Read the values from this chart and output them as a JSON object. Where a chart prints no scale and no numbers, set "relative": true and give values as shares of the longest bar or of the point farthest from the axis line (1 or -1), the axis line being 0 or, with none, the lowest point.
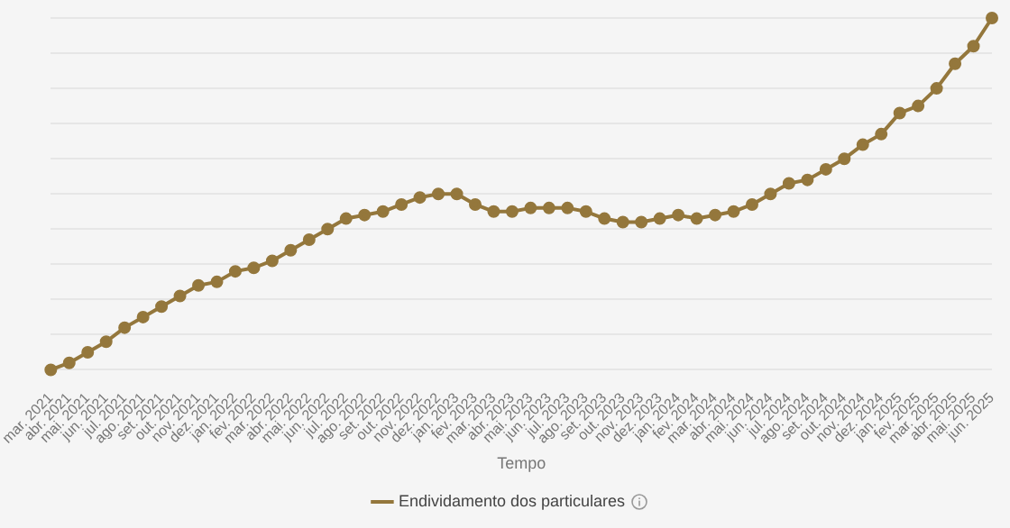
{
  "chart_data": {
    "type": "line",
    "xlabel": "Tempo",
    "relative": true,
    "grid": "y",
    "legend": "bottom",
    "marker": "circle",
    "line_style": "solid",
    "categories": [
      "mar. 2021",
      "abr. 2021",
      "mai. 2021",
      "jun. 2021",
      "jul. 2021",
      "ago. 2021",
      "set. 2021",
      "out. 2021",
      "nov. 2021",
      "dez. 2021",
      "jan. 2022",
      "fev. 2022",
      "mar. 2022",
      "abr. 2022",
      "mai. 2022",
      "jun. 2022",
      "jul. 2022",
      "ago. 2022",
      "set. 2022",
      "out. 2022",
      "nov. 2022",
      "dez. 2022",
      "jan. 2023",
      "fev. 2023",
      "mar. 2023",
      "abr. 2023",
      "mai. 2023",
      "jun. 2023",
      "jul. 2023",
      "ago. 2023",
      "set. 2023",
      "out. 2023",
      "nov. 2023",
      "dez. 2023",
      "jan. 2024",
      "fev. 2024",
      "mar. 2024",
      "abr. 2024",
      "mai. 2024",
      "jun. 2024",
      "jul. 2024",
      "ago. 2024",
      "set. 2024",
      "out. 2024",
      "nov. 2024",
      "dez. 2024",
      "jan. 2025",
      "fev. 2025",
      "mar. 2025",
      "abr. 2025",
      "mai. 2025",
      "jun. 2025"
    ],
    "series": [
      {
        "name": "Endividamento dos particulares",
        "color": "#94773c",
        "values": [
          0,
          0.02,
          0.05,
          0.08,
          0.12,
          0.15,
          0.18,
          0.21,
          0.24,
          0.25,
          0.28,
          0.29,
          0.31,
          0.34,
          0.37,
          0.4,
          0.43,
          0.44,
          0.45,
          0.47,
          0.49,
          0.5,
          0.5,
          0.47,
          0.45,
          0.45,
          0.46,
          0.46,
          0.46,
          0.45,
          0.43,
          0.42,
          0.42,
          0.43,
          0.44,
          0.43,
          0.44,
          0.45,
          0.47,
          0.5,
          0.53,
          0.54,
          0.57,
          0.6,
          0.64,
          0.67,
          0.73,
          0.75,
          0.8,
          0.87,
          0.92,
          1
        ]
      }
    ]
  }
}
